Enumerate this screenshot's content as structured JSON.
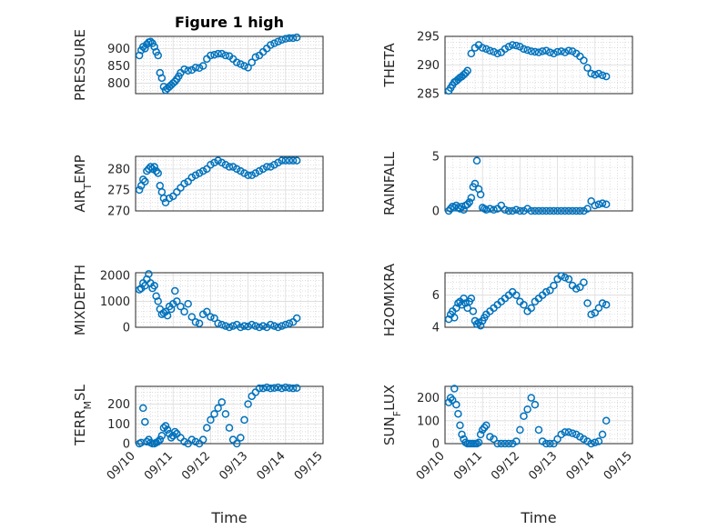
{
  "figure": {
    "title": "Figure 1 high"
  },
  "chart_data": [
    {
      "type": "scatter",
      "ylabel": "PRESSURE",
      "ylim": [
        770,
        935
      ],
      "yticks": [
        800,
        850,
        900
      ],
      "xlim": [
        0,
        5
      ],
      "xticks": [
        "09/10",
        "09/11",
        "09/12",
        "09/13",
        "09/14",
        "09/15"
      ],
      "xlabel": "",
      "color": "#0072bd",
      "x": [
        0.1,
        0.15,
        0.2,
        0.25,
        0.3,
        0.35,
        0.4,
        0.45,
        0.5,
        0.55,
        0.6,
        0.65,
        0.7,
        0.75,
        0.8,
        0.85,
        0.9,
        0.95,
        1.0,
        1.05,
        1.1,
        1.15,
        1.2,
        1.3,
        1.4,
        1.5,
        1.6,
        1.7,
        1.8,
        1.9,
        2.0,
        2.1,
        2.2,
        2.3,
        2.4,
        2.5,
        2.6,
        2.7,
        2.8,
        2.9,
        3.0,
        3.1,
        3.2,
        3.3,
        3.4,
        3.5,
        3.6,
        3.7,
        3.8,
        3.9,
        4.0,
        4.1,
        4.2,
        4.3
      ],
      "y": [
        880,
        895,
        905,
        900,
        912,
        918,
        920,
        915,
        905,
        890,
        880,
        830,
        815,
        790,
        780,
        785,
        790,
        795,
        800,
        805,
        812,
        820,
        830,
        840,
        836,
        838,
        845,
        844,
        850,
        870,
        880,
        882,
        885,
        885,
        880,
        878,
        870,
        860,
        855,
        850,
        845,
        860,
        875,
        880,
        890,
        900,
        910,
        915,
        920,
        925,
        928,
        930,
        930,
        932
      ]
    },
    {
      "type": "scatter",
      "ylabel": "THETA",
      "ylim": [
        285,
        295
      ],
      "yticks": [
        285,
        290,
        295
      ],
      "xlim": [
        0,
        5
      ],
      "xticks": [
        "09/10",
        "09/11",
        "09/12",
        "09/13",
        "09/14",
        "09/15"
      ],
      "xlabel": "",
      "color": "#0072bd",
      "x": [
        0.1,
        0.15,
        0.2,
        0.25,
        0.3,
        0.35,
        0.4,
        0.45,
        0.5,
        0.55,
        0.6,
        0.7,
        0.8,
        0.9,
        1.0,
        1.1,
        1.2,
        1.3,
        1.4,
        1.5,
        1.6,
        1.7,
        1.8,
        1.9,
        2.0,
        2.1,
        2.2,
        2.3,
        2.4,
        2.5,
        2.6,
        2.7,
        2.8,
        2.9,
        3.0,
        3.1,
        3.2,
        3.3,
        3.4,
        3.5,
        3.6,
        3.7,
        3.8,
        3.9,
        4.0,
        4.1,
        4.2,
        4.3
      ],
      "y": [
        285.5,
        286,
        286.5,
        287,
        287.2,
        287.5,
        287.8,
        288,
        288.3,
        288.6,
        289,
        292,
        293,
        293.5,
        293,
        292.8,
        292.5,
        292.3,
        292,
        292.2,
        292.8,
        293.2,
        293.5,
        293.4,
        293.2,
        292.8,
        292.6,
        292.4,
        292.3,
        292.2,
        292.4,
        292.5,
        292.2,
        292,
        292.3,
        292.4,
        292.2,
        292.5,
        292.4,
        292,
        291.5,
        290.8,
        289.5,
        288.5,
        288.3,
        288.5,
        288.2,
        288
      ]
    },
    {
      "type": "scatter",
      "ylabel": "AIR_TEMP",
      "ylim": [
        270,
        283
      ],
      "yticks": [
        270,
        275,
        280
      ],
      "xlim": [
        0,
        5
      ],
      "xticks": [
        "09/10",
        "09/11",
        "09/12",
        "09/13",
        "09/14",
        "09/15"
      ],
      "xlabel": "",
      "color": "#0072bd",
      "x": [
        0.1,
        0.15,
        0.2,
        0.25,
        0.3,
        0.35,
        0.4,
        0.45,
        0.5,
        0.55,
        0.6,
        0.65,
        0.7,
        0.75,
        0.8,
        0.9,
        1.0,
        1.1,
        1.2,
        1.3,
        1.4,
        1.5,
        1.6,
        1.7,
        1.8,
        1.9,
        2.0,
        2.1,
        2.2,
        2.3,
        2.4,
        2.5,
        2.6,
        2.7,
        2.8,
        2.9,
        3.0,
        3.1,
        3.2,
        3.3,
        3.4,
        3.5,
        3.6,
        3.7,
        3.8,
        3.9,
        4.0,
        4.1,
        4.2,
        4.3
      ],
      "y": [
        275,
        276,
        277.5,
        277,
        279.5,
        280,
        280.5,
        280,
        280.5,
        279.5,
        279,
        276,
        274.5,
        273,
        272,
        273,
        273.5,
        274.5,
        275.5,
        276.5,
        277,
        278,
        278.5,
        279,
        279.5,
        280,
        281,
        281.5,
        282,
        281.5,
        281,
        280.5,
        280.5,
        280,
        279.5,
        279,
        278.5,
        278.5,
        279,
        279.5,
        280,
        280.5,
        280.5,
        281,
        281.5,
        282,
        282,
        282,
        282,
        282
      ]
    },
    {
      "type": "scatter",
      "ylabel": "RAINFALL",
      "ylim": [
        0,
        5
      ],
      "yticks": [
        0,
        5
      ],
      "xlim": [
        0,
        5
      ],
      "xticks": [
        "09/10",
        "09/11",
        "09/12",
        "09/13",
        "09/14",
        "09/15"
      ],
      "xlabel": "",
      "color": "#0072bd",
      "x": [
        0.1,
        0.15,
        0.2,
        0.25,
        0.3,
        0.35,
        0.4,
        0.45,
        0.5,
        0.55,
        0.6,
        0.65,
        0.7,
        0.75,
        0.8,
        0.85,
        0.9,
        0.95,
        1.0,
        1.05,
        1.1,
        1.2,
        1.3,
        1.4,
        1.5,
        1.6,
        1.7,
        1.8,
        1.9,
        2.0,
        2.1,
        2.2,
        2.3,
        2.4,
        2.5,
        2.6,
        2.7,
        2.8,
        2.9,
        3.0,
        3.1,
        3.2,
        3.3,
        3.4,
        3.5,
        3.6,
        3.7,
        3.8,
        3.9,
        4.0,
        4.1,
        4.2,
        4.3
      ],
      "y": [
        0,
        0.2,
        0.4,
        0.3,
        0.5,
        0.3,
        0.2,
        0.4,
        0.1,
        0.5,
        0.6,
        0.8,
        1.2,
        2.2,
        2.5,
        4.6,
        2,
        1.5,
        0.3,
        0.2,
        0.1,
        0.2,
        0.1,
        0.2,
        0.5,
        0.1,
        0,
        0,
        0.1,
        0,
        0,
        0.2,
        0,
        0,
        0,
        0,
        0,
        0,
        0,
        0,
        0,
        0,
        0,
        0,
        0,
        0,
        0,
        0.2,
        0.9,
        0.5,
        0.6,
        0.7,
        0.6
      ]
    },
    {
      "type": "scatter",
      "ylabel": "MIXDEPTH",
      "ylim": [
        0,
        2100
      ],
      "yticks": [
        0,
        1000,
        2000
      ],
      "xlim": [
        0,
        5
      ],
      "xticks": [
        "09/10",
        "09/11",
        "09/12",
        "09/13",
        "09/14",
        "09/15"
      ],
      "xlabel": "",
      "color": "#0072bd",
      "x": [
        0.1,
        0.15,
        0.2,
        0.25,
        0.3,
        0.35,
        0.4,
        0.45,
        0.5,
        0.55,
        0.6,
        0.65,
        0.7,
        0.75,
        0.8,
        0.85,
        0.9,
        0.95,
        1.0,
        1.05,
        1.1,
        1.2,
        1.3,
        1.4,
        1.5,
        1.6,
        1.7,
        1.8,
        1.9,
        2.0,
        2.1,
        2.2,
        2.3,
        2.4,
        2.5,
        2.6,
        2.7,
        2.8,
        2.9,
        3.0,
        3.1,
        3.2,
        3.3,
        3.4,
        3.5,
        3.6,
        3.7,
        3.8,
        3.9,
        4.0,
        4.1,
        4.2,
        4.3
      ],
      "y": [
        1450,
        1500,
        1700,
        1600,
        1850,
        2050,
        1700,
        1500,
        1600,
        1200,
        1000,
        700,
        500,
        550,
        600,
        450,
        800,
        700,
        900,
        1400,
        1000,
        800,
        600,
        900,
        400,
        200,
        150,
        500,
        600,
        400,
        350,
        150,
        100,
        50,
        0,
        50,
        100,
        0,
        50,
        30,
        100,
        50,
        0,
        50,
        0,
        100,
        50,
        0,
        50,
        100,
        150,
        200,
        350
      ]
    },
    {
      "type": "scatter",
      "ylabel": "H2OMIXRA",
      "ylim": [
        4,
        7.4
      ],
      "yticks": [
        4,
        6
      ],
      "xlim": [
        0,
        5
      ],
      "xticks": [
        "09/10",
        "09/11",
        "09/12",
        "09/13",
        "09/14",
        "09/15"
      ],
      "xlabel": "",
      "color": "#0072bd",
      "x": [
        0.1,
        0.15,
        0.2,
        0.25,
        0.3,
        0.35,
        0.4,
        0.45,
        0.5,
        0.55,
        0.6,
        0.65,
        0.7,
        0.75,
        0.8,
        0.85,
        0.9,
        0.95,
        1.0,
        1.05,
        1.1,
        1.2,
        1.3,
        1.4,
        1.5,
        1.6,
        1.7,
        1.8,
        1.9,
        2.0,
        2.1,
        2.2,
        2.3,
        2.4,
        2.5,
        2.6,
        2.7,
        2.8,
        2.9,
        3.0,
        3.1,
        3.2,
        3.3,
        3.4,
        3.5,
        3.6,
        3.7,
        3.8,
        3.9,
        4.0,
        4.1,
        4.2,
        4.3
      ],
      "y": [
        4.5,
        4.8,
        5,
        4.6,
        5.2,
        5.5,
        5.6,
        5.4,
        5.8,
        5.5,
        5.2,
        5.6,
        5.8,
        5,
        4.4,
        4.2,
        4.3,
        4.1,
        4.4,
        4.6,
        4.8,
        5,
        5.2,
        5.4,
        5.6,
        5.8,
        6,
        6.2,
        6,
        5.6,
        5.4,
        5,
        5.2,
        5.6,
        5.8,
        6,
        6.2,
        6.3,
        6.6,
        7,
        7.2,
        7.1,
        7,
        6.6,
        6.4,
        6.5,
        6.8,
        5.5,
        4.8,
        4.9,
        5.2,
        5.5,
        5.4
      ]
    },
    {
      "type": "scatter",
      "ylabel": "TERR_MSL",
      "ylim": [
        0,
        290
      ],
      "yticks": [
        0,
        100,
        200
      ],
      "xlim": [
        0,
        5
      ],
      "xticks": [
        "09/10",
        "09/11",
        "09/12",
        "09/13",
        "09/14",
        "09/15"
      ],
      "xlabel": "Time",
      "color": "#0072bd",
      "x": [
        0.1,
        0.15,
        0.2,
        0.25,
        0.3,
        0.35,
        0.4,
        0.45,
        0.5,
        0.55,
        0.6,
        0.65,
        0.7,
        0.75,
        0.8,
        0.85,
        0.9,
        0.95,
        1.0,
        1.05,
        1.1,
        1.2,
        1.3,
        1.4,
        1.5,
        1.6,
        1.7,
        1.8,
        1.9,
        2.0,
        2.1,
        2.2,
        2.3,
        2.4,
        2.5,
        2.6,
        2.7,
        2.8,
        2.9,
        3.0,
        3.1,
        3.2,
        3.3,
        3.4,
        3.5,
        3.6,
        3.7,
        3.8,
        3.9,
        4.0,
        4.1,
        4.2,
        4.3
      ],
      "y": [
        0,
        5,
        180,
        110,
        10,
        20,
        5,
        0,
        0,
        5,
        10,
        20,
        40,
        80,
        90,
        70,
        50,
        30,
        40,
        60,
        50,
        30,
        10,
        0,
        20,
        10,
        0,
        20,
        80,
        120,
        150,
        180,
        210,
        150,
        80,
        20,
        0,
        30,
        120,
        200,
        240,
        260,
        280,
        280,
        285,
        280,
        282,
        285,
        280,
        285,
        282,
        280,
        282
      ]
    },
    {
      "type": "scatter",
      "ylabel": "SUN_FLUX",
      "ylim": [
        0,
        250
      ],
      "yticks": [
        0,
        100,
        200
      ],
      "xlim": [
        0,
        5
      ],
      "xticks": [
        "09/10",
        "09/11",
        "09/12",
        "09/13",
        "09/14",
        "09/15"
      ],
      "xlabel": "Time",
      "color": "#0072bd",
      "x": [
        0.1,
        0.15,
        0.2,
        0.25,
        0.3,
        0.35,
        0.4,
        0.45,
        0.5,
        0.55,
        0.6,
        0.65,
        0.7,
        0.75,
        0.8,
        0.85,
        0.9,
        0.95,
        1.0,
        1.05,
        1.1,
        1.2,
        1.3,
        1.4,
        1.5,
        1.6,
        1.7,
        1.8,
        1.9,
        2.0,
        2.1,
        2.2,
        2.3,
        2.4,
        2.5,
        2.6,
        2.7,
        2.8,
        2.9,
        3.0,
        3.1,
        3.2,
        3.3,
        3.4,
        3.5,
        3.6,
        3.7,
        3.8,
        3.9,
        4.0,
        4.1,
        4.2,
        4.3
      ],
      "y": [
        180,
        200,
        190,
        240,
        170,
        130,
        80,
        40,
        20,
        5,
        0,
        0,
        0,
        0,
        0,
        0,
        5,
        40,
        60,
        70,
        80,
        30,
        20,
        0,
        0,
        0,
        0,
        0,
        10,
        60,
        120,
        150,
        200,
        170,
        60,
        10,
        0,
        0,
        0,
        20,
        40,
        50,
        50,
        45,
        40,
        30,
        20,
        10,
        0,
        5,
        10,
        40,
        100
      ]
    }
  ]
}
